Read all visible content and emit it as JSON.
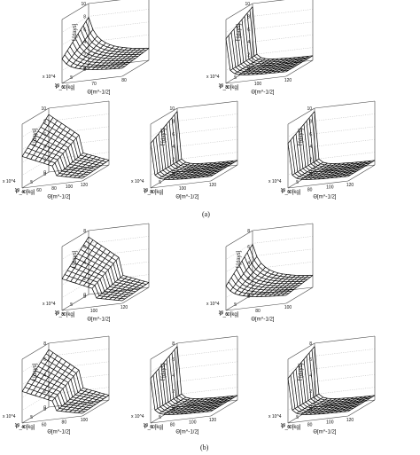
{
  "figure": {
    "caption_a": "(a)",
    "caption_b": "(b)"
  },
  "chart_data": [
    {
      "id": "a1",
      "type": "surface",
      "zlabel": "t̄ [days]",
      "xlabel": "P_x [kg]",
      "ylabel": "Θ[m^-1/2]",
      "zticks": [
        "0",
        "2",
        "4",
        "6",
        "8",
        "10"
      ],
      "xticks": [
        "0",
        "5",
        "10"
      ],
      "yticks": [
        "60",
        "70",
        "80"
      ],
      "xexp": "x 10^4",
      "zlim": [
        0,
        10
      ],
      "grid": true,
      "shape": "steep-front"
    },
    {
      "id": "a2",
      "type": "surface",
      "zlabel": "t̄ [days]",
      "xlabel": "P_x [kg]",
      "ylabel": "Θ[m^-1/2]",
      "zticks": [
        "0",
        "2",
        "4",
        "6",
        "8",
        "10"
      ],
      "xticks": [
        "0",
        "5",
        "10"
      ],
      "yticks": [
        "80",
        "100",
        "120"
      ],
      "xexp": "x 10^4",
      "zlim": [
        0,
        10
      ],
      "grid": true,
      "shape": "wall"
    },
    {
      "id": "a3",
      "type": "surface",
      "zlabel": "t̄ [days]",
      "xlabel": "P_x [kg]",
      "ylabel": "Θ[m^-1/2]",
      "zticks": [
        "0",
        "2",
        "4",
        "6",
        "8",
        "10"
      ],
      "xticks": [
        "0",
        "5",
        "10"
      ],
      "yticks": [
        "40",
        "60",
        "80",
        "100",
        "120"
      ],
      "xexp": "x 10^4",
      "zlim": [
        0,
        10
      ],
      "grid": true,
      "shape": "slope"
    },
    {
      "id": "a4",
      "type": "surface",
      "zlabel": "t̄ [days]",
      "xlabel": "P_x [kg]",
      "ylabel": "Θ[m^-1/2]",
      "zticks": [
        "0",
        "2",
        "4",
        "6",
        "8",
        "10"
      ],
      "xticks": [
        "0",
        "5",
        "10"
      ],
      "yticks": [
        "80",
        "100",
        "120"
      ],
      "xexp": "x 10^4",
      "zlim": [
        0,
        10
      ],
      "grid": true,
      "shape": "wall"
    },
    {
      "id": "a5",
      "type": "surface",
      "zlabel": "t̄ [days]",
      "xlabel": "P_x [kg]",
      "ylabel": "Θ[m^-1/2]",
      "zticks": [
        "0",
        "2",
        "4",
        "6",
        "8",
        "10"
      ],
      "xticks": [
        "0",
        "5",
        "10"
      ],
      "yticks": [
        "60",
        "80",
        "100",
        "120"
      ],
      "xexp": "x 10^4",
      "zlim": [
        0,
        10
      ],
      "grid": true,
      "shape": "wall"
    },
    {
      "id": "b1",
      "type": "surface",
      "zlabel": "t̄ [days]",
      "xlabel": "P_x [kg]",
      "ylabel": "Θ[m^-1/2]",
      "zticks": [
        "0",
        "2",
        "4",
        "6",
        "8"
      ],
      "xticks": [
        "0",
        "5",
        "10"
      ],
      "yticks": [
        "80",
        "100",
        "120"
      ],
      "xexp": "x 10^4",
      "zlim": [
        0,
        8
      ],
      "grid": true,
      "shape": "slope"
    },
    {
      "id": "b2",
      "type": "surface",
      "zlabel": "t̄ [days]",
      "xlabel": "P_x [kg]",
      "ylabel": "Θ[m^-1/2]",
      "zticks": [
        "0",
        "2",
        "4",
        "6",
        "8"
      ],
      "xticks": [
        "0",
        "5",
        "10"
      ],
      "yticks": [
        "60",
        "80",
        "100"
      ],
      "xexp": "x 10^4",
      "zlim": [
        0,
        8
      ],
      "grid": true,
      "shape": "steep-front"
    },
    {
      "id": "b3",
      "type": "surface",
      "zlabel": "t̄ [days]",
      "xlabel": "P_x [kg]",
      "ylabel": "Θ[m^-1/2]",
      "zticks": [
        "0",
        "2",
        "4",
        "6",
        "8"
      ],
      "xticks": [
        "0",
        "5",
        "10"
      ],
      "yticks": [
        "40",
        "60",
        "80",
        "100"
      ],
      "xexp": "x 10^4",
      "zlim": [
        0,
        8
      ],
      "grid": true,
      "shape": "slope"
    },
    {
      "id": "b4",
      "type": "surface",
      "zlabel": "t̄ [days]",
      "xlabel": "P_x [kg]",
      "ylabel": "Θ[m^-1/2]",
      "zticks": [
        "0",
        "2",
        "4",
        "6",
        "8"
      ],
      "xticks": [
        "0",
        "5",
        "10"
      ],
      "yticks": [
        "60",
        "80",
        "100",
        "120"
      ],
      "xexp": "x 10^4",
      "zlim": [
        0,
        8
      ],
      "grid": true,
      "shape": "wall"
    },
    {
      "id": "b5",
      "type": "surface",
      "zlabel": "t̄ [days]",
      "xlabel": "P_x [kg]",
      "ylabel": "Θ[m^-1/2]",
      "zticks": [
        "0",
        "2",
        "4",
        "6",
        "8"
      ],
      "xticks": [
        "0",
        "5",
        "10"
      ],
      "yticks": [
        "60",
        "80",
        "100",
        "120"
      ],
      "xexp": "x 10^4",
      "zlim": [
        0,
        8
      ],
      "grid": true,
      "shape": "wall"
    }
  ]
}
